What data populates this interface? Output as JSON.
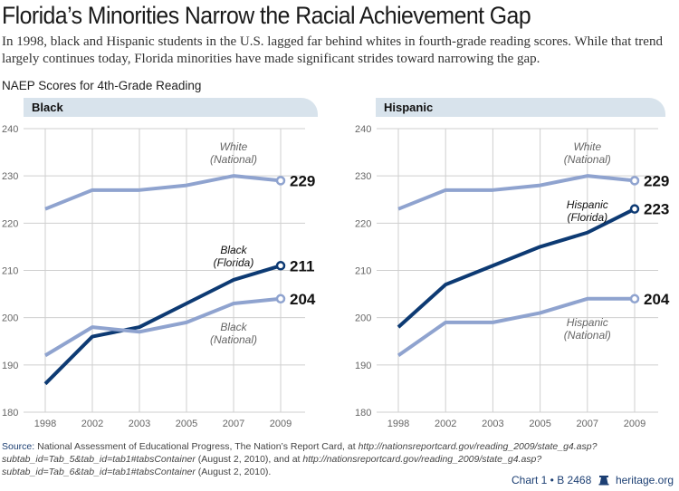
{
  "title": "Florida’s Minorities Narrow the Racial Achievement Gap",
  "subtitle": "In 1998, black and Hispanic students in the U.S. lagged far behind whites in fourth-grade reading scores. While that trend largely continues today, Florida minorities have made significant strides toward narrowing the gap.",
  "section_title": "NAEP Scores for 4th-Grade Reading",
  "colors": {
    "light": "#8fa3cf",
    "dark": "#0d3a73",
    "grid": "#cfcfcf",
    "header_bg": "#d8e3ec"
  },
  "chart_data": [
    {
      "type": "line",
      "title": "Black",
      "categories": [
        "1998",
        "2002",
        "2003",
        "2005",
        "2007",
        "2009"
      ],
      "ylim": [
        180,
        240
      ],
      "yticks": [
        180,
        190,
        200,
        210,
        220,
        230,
        240
      ],
      "grid": true,
      "series": [
        {
          "name": "White (National)",
          "label_line1": "White",
          "label_line2": "(National)",
          "style": "light",
          "values": [
            223,
            227,
            227,
            228,
            230,
            229
          ],
          "end_label": "229"
        },
        {
          "name": "Black (Florida)",
          "label_line1": "Black",
          "label_line2": "(Florida)",
          "style": "dark",
          "values": [
            186,
            196,
            198,
            203,
            208,
            211
          ],
          "end_label": "211"
        },
        {
          "name": "Black (National)",
          "label_line1": "Black",
          "label_line2": "(National)",
          "style": "light",
          "values": [
            192,
            198,
            197,
            199,
            203,
            204
          ],
          "end_label": "204"
        }
      ]
    },
    {
      "type": "line",
      "title": "Hispanic",
      "categories": [
        "1998",
        "2002",
        "2003",
        "2005",
        "2007",
        "2009"
      ],
      "ylim": [
        180,
        240
      ],
      "yticks": [
        180,
        190,
        200,
        210,
        220,
        230,
        240
      ],
      "grid": true,
      "series": [
        {
          "name": "White (National)",
          "label_line1": "White",
          "label_line2": "(National)",
          "style": "light",
          "values": [
            223,
            227,
            227,
            228,
            230,
            229
          ],
          "end_label": "229"
        },
        {
          "name": "Hispanic (Florida)",
          "label_line1": "Hispanic",
          "label_line2": "(Florida)",
          "style": "dark",
          "values": [
            198,
            207,
            211,
            215,
            218,
            223
          ],
          "end_label": "223"
        },
        {
          "name": "Hispanic (National)",
          "label_line1": "Hispanic",
          "label_line2": "(National)",
          "style": "light",
          "values": [
            192,
            199,
            199,
            201,
            204,
            204
          ],
          "end_label": "204"
        }
      ]
    }
  ],
  "source": {
    "label": "Source:",
    "text1": " National Assessment of Educational Progress, The Nation’s Report Card, at ",
    "url1": "http://nationsreportcard.gov/reading_2009/state_g4.asp?subtab_id=Tab_5&tab_id=tab1#tabsContainer",
    "text2": " (August 2, 2010), and at ",
    "url2": "http://nationsreportcard.gov/reading_2009/state_g4.asp?subtab_id=Tab_6&tab_id=tab1#tabsContainer",
    "text3": " (August 2, 2010)."
  },
  "footer": {
    "chart_id": "Chart 1 • B 2468",
    "logo_icon": "liberty-bell-icon",
    "site": "heritage.org"
  }
}
